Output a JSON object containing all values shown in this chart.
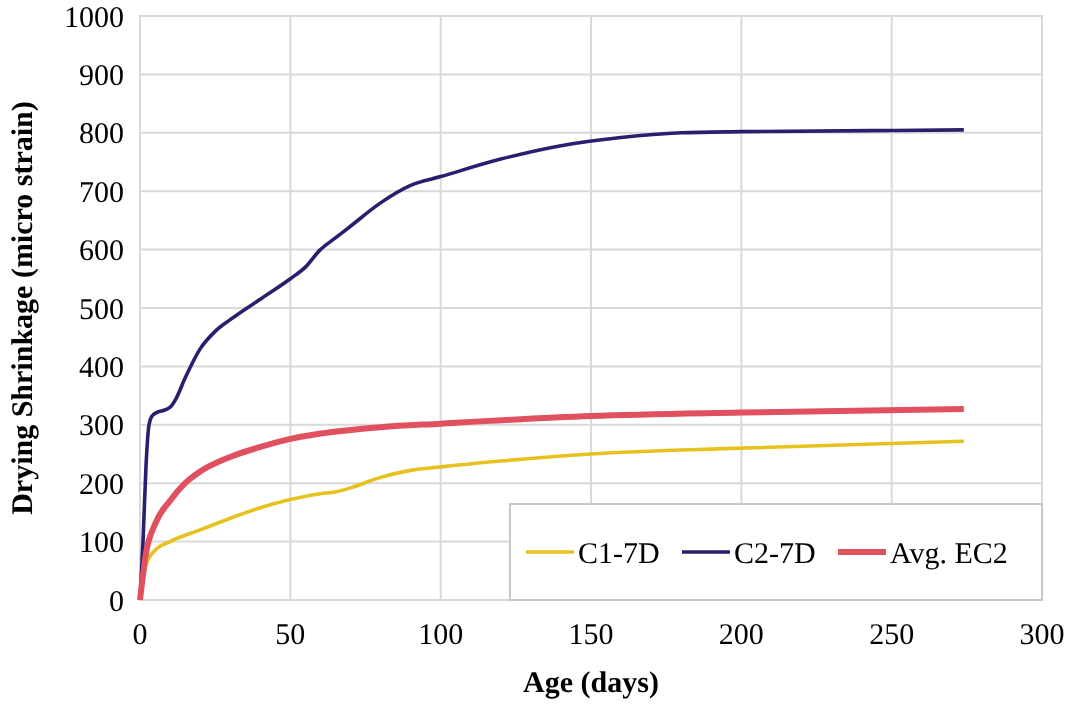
{
  "chart_data": {
    "type": "line",
    "xlabel": "Age (days)",
    "ylabel": "Drying Shrinkage (micro strain)",
    "xlim": [
      0,
      300
    ],
    "xticks": [
      0,
      50,
      100,
      150,
      200,
      250,
      300
    ],
    "ylim": [
      0,
      1000
    ],
    "yticks": [
      0,
      100,
      200,
      300,
      400,
      500,
      600,
      700,
      800,
      900,
      1000
    ],
    "grid": true,
    "legend": "bottom right",
    "line_style": "solid",
    "series": [
      {
        "name": "C1-7D",
        "color": "#e6c21e",
        "x": [
          0,
          2,
          5,
          10,
          20,
          30,
          40,
          50,
          60,
          65,
          70,
          80,
          90,
          100,
          120,
          150,
          200,
          274
        ],
        "values": [
          0,
          60,
          85,
          100,
          120,
          140,
          158,
          172,
          182,
          185,
          192,
          210,
          222,
          228,
          238,
          250,
          260,
          272
        ]
      },
      {
        "name": "C2-7D",
        "color": "#2a1f6e",
        "x": [
          0,
          1,
          2,
          3,
          4,
          6,
          8,
          10,
          12,
          15,
          20,
          25,
          30,
          40,
          50,
          55,
          60,
          65,
          70,
          80,
          90,
          100,
          120,
          140,
          160,
          180,
          200,
          250,
          274
        ],
        "values": [
          0,
          100,
          230,
          300,
          315,
          322,
          325,
          330,
          345,
          380,
          430,
          460,
          480,
          515,
          550,
          570,
          600,
          620,
          640,
          680,
          710,
          725,
          755,
          778,
          792,
          800,
          802,
          804,
          805
        ]
      },
      {
        "name": "Avg. EC2",
        "color": "#e0505e",
        "x": [
          0,
          2,
          5,
          10,
          15,
          20,
          30,
          40,
          50,
          60,
          80,
          100,
          150,
          200,
          274
        ],
        "values": [
          0,
          80,
          130,
          170,
          200,
          220,
          245,
          262,
          276,
          285,
          296,
          302,
          315,
          321,
          327
        ]
      }
    ]
  }
}
